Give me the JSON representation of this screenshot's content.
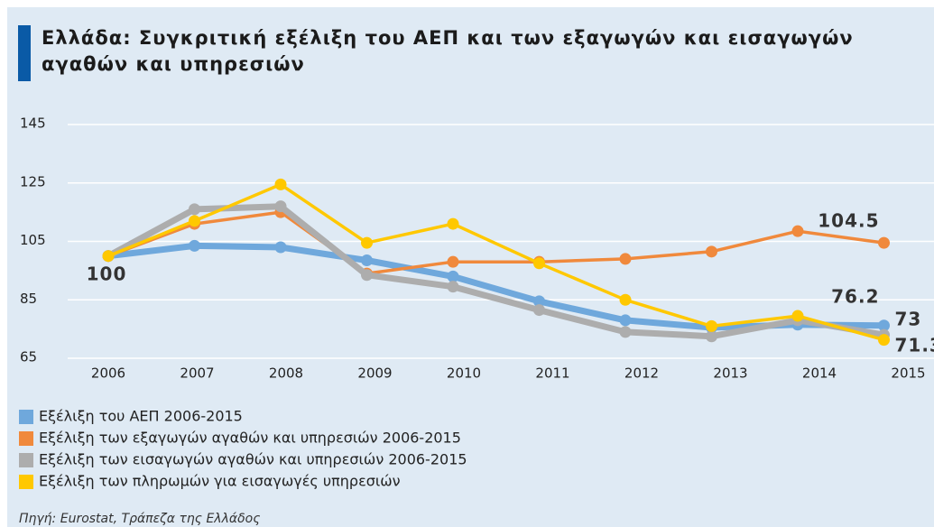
{
  "chart_data": {
    "type": "line",
    "title": "Ελλάδα: Συγκριτική εξέλιξη του ΑΕΠ και των εξαγωγών και εισαγωγών αγαθών και υπηρεσιών",
    "categories": [
      "2006",
      "2007",
      "2008",
      "2009",
      "2010",
      "2011",
      "2012",
      "2013",
      "2014",
      "2015"
    ],
    "series": [
      {
        "name": "Εξέλιξη του ΑΕΠ 2006-2015",
        "color": "#6fa8dc",
        "values": [
          100,
          103.5,
          103,
          98.5,
          93,
          84.5,
          78,
          75.5,
          76.5,
          76.2
        ]
      },
      {
        "name": "Εξέλιξη των εξαγωγών αγαθών και υπηρεσιών 2006-2015",
        "color": "#f0893c",
        "values": [
          100,
          111,
          115,
          94,
          98,
          98,
          99,
          101.5,
          108.5,
          104.5
        ]
      },
      {
        "name": "Εξέλιξη των εισαγωγών αγαθών και υπηρεσιών 2006-2015",
        "color": "#adadad",
        "values": [
          100,
          116,
          117,
          93.5,
          89.5,
          81.5,
          74,
          72.5,
          78,
          73
        ]
      },
      {
        "name": "Εξέλιξη των πληρωμών για εισαγωγές υπηρεσιών",
        "color": "#ffc800",
        "values": [
          100,
          112,
          124.5,
          104.5,
          111,
          97.5,
          85,
          76,
          79.5,
          71.3
        ]
      }
    ],
    "ylim": [
      65,
      145
    ],
    "yticks": [
      65,
      85,
      105,
      125,
      145
    ],
    "grid": true,
    "source": "Πηγή: Eurostat, Τράπεζα της Ελλάδος"
  }
}
